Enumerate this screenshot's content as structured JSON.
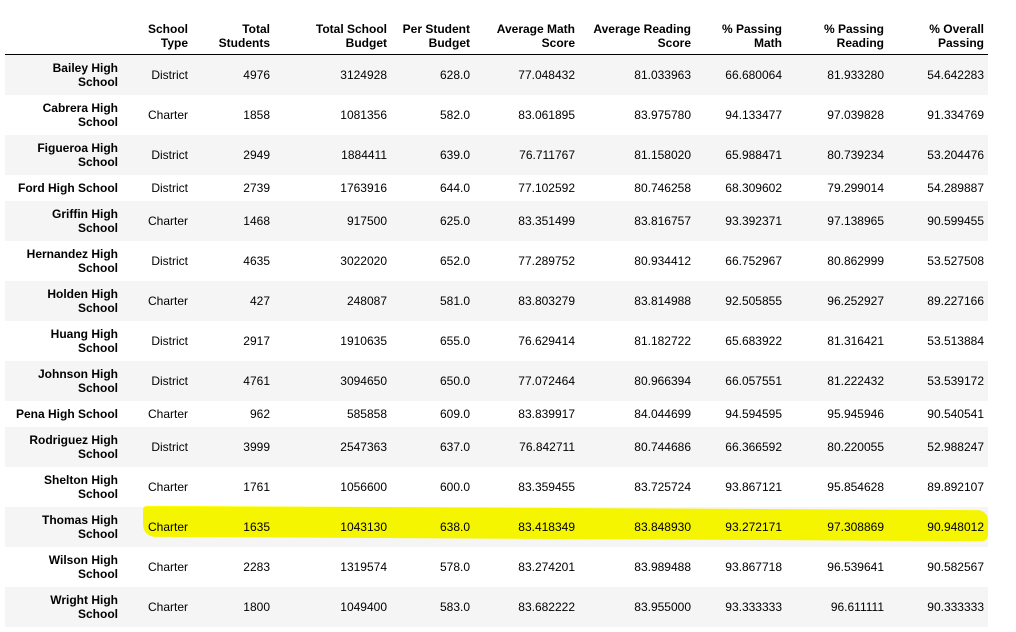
{
  "table": {
    "columns": [
      [
        "School",
        "Type"
      ],
      [
        "Total",
        "Students"
      ],
      [
        "Total School",
        "Budget"
      ],
      [
        "Per Student",
        "Budget"
      ],
      [
        "Average Math",
        "Score"
      ],
      [
        "Average Reading",
        "Score"
      ],
      [
        "% Passing",
        "Math"
      ],
      [
        "% Passing",
        "Reading"
      ],
      [
        "% Overall",
        "Passing"
      ]
    ],
    "rows": [
      [
        [
          "Bailey High",
          "School"
        ],
        "District",
        "4976",
        "3124928",
        "628.0",
        "77.048432",
        "81.033963",
        "66.680064",
        "81.933280",
        "54.642283"
      ],
      [
        [
          "Cabrera High",
          "School"
        ],
        "Charter",
        "1858",
        "1081356",
        "582.0",
        "83.061895",
        "83.975780",
        "94.133477",
        "97.039828",
        "91.334769"
      ],
      [
        [
          "Figueroa High",
          "School"
        ],
        "District",
        "2949",
        "1884411",
        "639.0",
        "76.711767",
        "81.158020",
        "65.988471",
        "80.739234",
        "53.204476"
      ],
      [
        [
          "Ford High School"
        ],
        "District",
        "2739",
        "1763916",
        "644.0",
        "77.102592",
        "80.746258",
        "68.309602",
        "79.299014",
        "54.289887"
      ],
      [
        [
          "Griffin High",
          "School"
        ],
        "Charter",
        "1468",
        "917500",
        "625.0",
        "83.351499",
        "83.816757",
        "93.392371",
        "97.138965",
        "90.599455"
      ],
      [
        [
          "Hernandez High",
          "School"
        ],
        "District",
        "4635",
        "3022020",
        "652.0",
        "77.289752",
        "80.934412",
        "66.752967",
        "80.862999",
        "53.527508"
      ],
      [
        [
          "Holden High",
          "School"
        ],
        "Charter",
        "427",
        "248087",
        "581.0",
        "83.803279",
        "83.814988",
        "92.505855",
        "96.252927",
        "89.227166"
      ],
      [
        [
          "Huang High",
          "School"
        ],
        "District",
        "2917",
        "1910635",
        "655.0",
        "76.629414",
        "81.182722",
        "65.683922",
        "81.316421",
        "53.513884"
      ],
      [
        [
          "Johnson High",
          "School"
        ],
        "District",
        "4761",
        "3094650",
        "650.0",
        "77.072464",
        "80.966394",
        "66.057551",
        "81.222432",
        "53.539172"
      ],
      [
        [
          "Pena High School"
        ],
        "Charter",
        "962",
        "585858",
        "609.0",
        "83.839917",
        "84.044699",
        "94.594595",
        "95.945946",
        "90.540541"
      ],
      [
        [
          "Rodriguez High",
          "School"
        ],
        "District",
        "3999",
        "2547363",
        "637.0",
        "76.842711",
        "80.744686",
        "66.366592",
        "80.220055",
        "52.988247"
      ],
      [
        [
          "Shelton High",
          "School"
        ],
        "Charter",
        "1761",
        "1056600",
        "600.0",
        "83.359455",
        "83.725724",
        "93.867121",
        "95.854628",
        "89.892107"
      ],
      [
        [
          "Thomas High",
          "School"
        ],
        "Charter",
        "1635",
        "1043130",
        "638.0",
        "83.418349",
        "83.848930",
        "93.272171",
        "97.308869",
        "90.948012"
      ],
      [
        [
          "Wilson High",
          "School"
        ],
        "Charter",
        "2283",
        "1319574",
        "578.0",
        "83.274201",
        "83.989488",
        "93.867718",
        "96.539641",
        "90.582567"
      ],
      [
        [
          "Wright High",
          "School"
        ],
        "Charter",
        "1800",
        "1049400",
        "583.0",
        "83.682222",
        "83.955000",
        "93.333333",
        "96.611111",
        "90.333333"
      ]
    ]
  }
}
